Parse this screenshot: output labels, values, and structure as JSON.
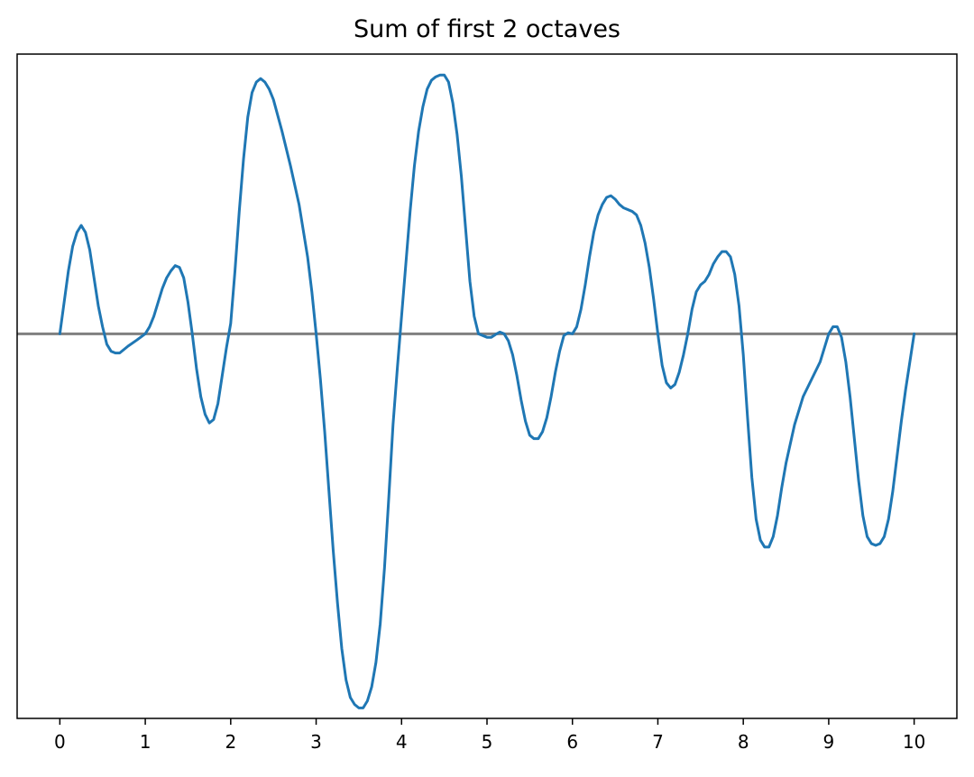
{
  "chart_data": {
    "type": "line",
    "title": "Sum of first 2 octaves",
    "xlabel": "",
    "ylabel": "",
    "xlim": [
      -0.5,
      10.5
    ],
    "ylim": [
      -1.1,
      0.8
    ],
    "x_ticks": [
      0,
      1,
      2,
      3,
      4,
      5,
      6,
      7,
      8,
      9,
      10
    ],
    "y_ticks": [],
    "grid": false,
    "legend": "none",
    "baseline": {
      "y": 0,
      "color": "#808080"
    },
    "series": [
      {
        "color": "#1f77b4",
        "points": [
          [
            0,
            0
          ],
          [
            0.05,
            0.09
          ],
          [
            0.1,
            0.18
          ],
          [
            0.15,
            0.25
          ],
          [
            0.2,
            0.29
          ],
          [
            0.25,
            0.31
          ],
          [
            0.3,
            0.29
          ],
          [
            0.35,
            0.24
          ],
          [
            0.4,
            0.16
          ],
          [
            0.45,
            0.08
          ],
          [
            0.5,
            0.02
          ],
          [
            0.55,
            -0.03
          ],
          [
            0.6,
            -0.05
          ],
          [
            0.65,
            -0.055
          ],
          [
            0.7,
            -0.055
          ],
          [
            0.75,
            -0.045
          ],
          [
            0.8,
            -0.035
          ],
          [
            0.9,
            -0.018
          ],
          [
            1.0,
            0
          ],
          [
            1.05,
            0.02
          ],
          [
            1.1,
            0.05
          ],
          [
            1.15,
            0.09
          ],
          [
            1.2,
            0.13
          ],
          [
            1.25,
            0.16
          ],
          [
            1.3,
            0.18
          ],
          [
            1.35,
            0.195
          ],
          [
            1.4,
            0.19
          ],
          [
            1.45,
            0.16
          ],
          [
            1.5,
            0.09
          ],
          [
            1.55,
            0.0
          ],
          [
            1.6,
            -0.1
          ],
          [
            1.65,
            -0.18
          ],
          [
            1.7,
            -0.23
          ],
          [
            1.75,
            -0.255
          ],
          [
            1.8,
            -0.245
          ],
          [
            1.85,
            -0.2
          ],
          [
            1.9,
            -0.12
          ],
          [
            1.95,
            -0.04
          ],
          [
            2.0,
            0.03
          ],
          [
            2.05,
            0.18
          ],
          [
            2.1,
            0.35
          ],
          [
            2.15,
            0.5
          ],
          [
            2.2,
            0.62
          ],
          [
            2.25,
            0.69
          ],
          [
            2.3,
            0.72
          ],
          [
            2.35,
            0.73
          ],
          [
            2.4,
            0.72
          ],
          [
            2.45,
            0.7
          ],
          [
            2.5,
            0.67
          ],
          [
            2.6,
            0.58
          ],
          [
            2.7,
            0.48
          ],
          [
            2.8,
            0.37
          ],
          [
            2.9,
            0.22
          ],
          [
            2.95,
            0.12
          ],
          [
            3.0,
            0.0
          ],
          [
            3.05,
            -0.13
          ],
          [
            3.1,
            -0.28
          ],
          [
            3.15,
            -0.45
          ],
          [
            3.2,
            -0.62
          ],
          [
            3.25,
            -0.77
          ],
          [
            3.3,
            -0.9
          ],
          [
            3.35,
            -0.99
          ],
          [
            3.4,
            -1.04
          ],
          [
            3.45,
            -1.06
          ],
          [
            3.5,
            -1.07
          ],
          [
            3.55,
            -1.07
          ],
          [
            3.6,
            -1.05
          ],
          [
            3.65,
            -1.01
          ],
          [
            3.7,
            -0.94
          ],
          [
            3.75,
            -0.83
          ],
          [
            3.8,
            -0.67
          ],
          [
            3.85,
            -0.47
          ],
          [
            3.9,
            -0.26
          ],
          [
            3.95,
            -0.1
          ],
          [
            4.0,
            0.05
          ],
          [
            4.05,
            0.2
          ],
          [
            4.1,
            0.35
          ],
          [
            4.15,
            0.48
          ],
          [
            4.2,
            0.58
          ],
          [
            4.25,
            0.65
          ],
          [
            4.3,
            0.7
          ],
          [
            4.35,
            0.725
          ],
          [
            4.4,
            0.735
          ],
          [
            4.45,
            0.74
          ],
          [
            4.5,
            0.74
          ],
          [
            4.55,
            0.72
          ],
          [
            4.6,
            0.66
          ],
          [
            4.65,
            0.57
          ],
          [
            4.7,
            0.45
          ],
          [
            4.75,
            0.3
          ],
          [
            4.8,
            0.15
          ],
          [
            4.85,
            0.05
          ],
          [
            4.9,
            0.0
          ],
          [
            5.0,
            -0.01
          ],
          [
            5.05,
            -0.01
          ],
          [
            5.1,
            -0.002
          ],
          [
            5.15,
            0.005
          ],
          [
            5.2,
            0.0
          ],
          [
            5.25,
            -0.02
          ],
          [
            5.3,
            -0.06
          ],
          [
            5.35,
            -0.12
          ],
          [
            5.4,
            -0.19
          ],
          [
            5.45,
            -0.25
          ],
          [
            5.5,
            -0.29
          ],
          [
            5.55,
            -0.3
          ],
          [
            5.6,
            -0.3
          ],
          [
            5.65,
            -0.28
          ],
          [
            5.7,
            -0.24
          ],
          [
            5.75,
            -0.18
          ],
          [
            5.8,
            -0.11
          ],
          [
            5.85,
            -0.05
          ],
          [
            5.9,
            -0.005
          ],
          [
            5.95,
            0.003
          ],
          [
            6.0,
            0.0
          ],
          [
            6.05,
            0.02
          ],
          [
            6.1,
            0.07
          ],
          [
            6.15,
            0.14
          ],
          [
            6.2,
            0.22
          ],
          [
            6.25,
            0.29
          ],
          [
            6.3,
            0.34
          ],
          [
            6.35,
            0.37
          ],
          [
            6.4,
            0.39
          ],
          [
            6.45,
            0.395
          ],
          [
            6.5,
            0.385
          ],
          [
            6.55,
            0.37
          ],
          [
            6.6,
            0.36
          ],
          [
            6.7,
            0.35
          ],
          [
            6.75,
            0.34
          ],
          [
            6.8,
            0.31
          ],
          [
            6.85,
            0.26
          ],
          [
            6.9,
            0.19
          ],
          [
            6.95,
            0.1
          ],
          [
            7.0,
            0.0
          ],
          [
            7.05,
            -0.09
          ],
          [
            7.1,
            -0.14
          ],
          [
            7.15,
            -0.155
          ],
          [
            7.2,
            -0.145
          ],
          [
            7.25,
            -0.11
          ],
          [
            7.3,
            -0.06
          ],
          [
            7.35,
            0.0
          ],
          [
            7.4,
            0.07
          ],
          [
            7.45,
            0.12
          ],
          [
            7.5,
            0.14
          ],
          [
            7.55,
            0.15
          ],
          [
            7.6,
            0.17
          ],
          [
            7.65,
            0.2
          ],
          [
            7.7,
            0.22
          ],
          [
            7.75,
            0.235
          ],
          [
            7.8,
            0.235
          ],
          [
            7.85,
            0.22
          ],
          [
            7.9,
            0.17
          ],
          [
            7.95,
            0.08
          ],
          [
            8.0,
            -0.06
          ],
          [
            8.05,
            -0.24
          ],
          [
            8.1,
            -0.41
          ],
          [
            8.15,
            -0.53
          ],
          [
            8.2,
            -0.59
          ],
          [
            8.25,
            -0.61
          ],
          [
            8.3,
            -0.61
          ],
          [
            8.35,
            -0.58
          ],
          [
            8.4,
            -0.52
          ],
          [
            8.45,
            -0.44
          ],
          [
            8.5,
            -0.37
          ],
          [
            8.6,
            -0.26
          ],
          [
            8.7,
            -0.18
          ],
          [
            8.8,
            -0.13
          ],
          [
            8.9,
            -0.08
          ],
          [
            8.95,
            -0.04
          ],
          [
            9.0,
            0.0
          ],
          [
            9.05,
            0.02
          ],
          [
            9.1,
            0.02
          ],
          [
            9.15,
            -0.01
          ],
          [
            9.2,
            -0.08
          ],
          [
            9.25,
            -0.18
          ],
          [
            9.3,
            -0.3
          ],
          [
            9.35,
            -0.42
          ],
          [
            9.4,
            -0.52
          ],
          [
            9.45,
            -0.58
          ],
          [
            9.5,
            -0.6
          ],
          [
            9.55,
            -0.605
          ],
          [
            9.6,
            -0.6
          ],
          [
            9.65,
            -0.58
          ],
          [
            9.7,
            -0.53
          ],
          [
            9.75,
            -0.45
          ],
          [
            9.8,
            -0.35
          ],
          [
            9.85,
            -0.25
          ],
          [
            9.9,
            -0.16
          ],
          [
            9.95,
            -0.08
          ],
          [
            10.0,
            0.0
          ]
        ]
      }
    ]
  }
}
